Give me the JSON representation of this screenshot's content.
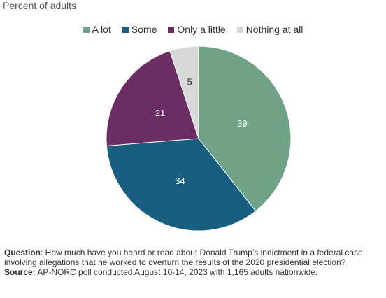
{
  "chart_data": {
    "type": "pie",
    "subtitle": "Percent of adults",
    "categories": [
      "A lot",
      "Some",
      "Only a little",
      "Nothing at all"
    ],
    "values": [
      39,
      34,
      21,
      5
    ],
    "colors": [
      "#6fa287",
      "#175e80",
      "#6b2e64",
      "#d8d8d8"
    ],
    "label_colors": [
      "#ffffff",
      "#ffffff",
      "#ffffff",
      "#333333"
    ],
    "legend_position": "top"
  },
  "footnote": {
    "question_label": "Question",
    "question_text": ": How much have you heard or read about Donald Trump’s indictment in a federal case involving allegations that he worked to overturn the results of the 2020 presidential election?",
    "source_label": "Source:",
    "source_text": " AP-NORC poll conducted August 10-14, 2023 with 1,165 adults nationwide."
  }
}
